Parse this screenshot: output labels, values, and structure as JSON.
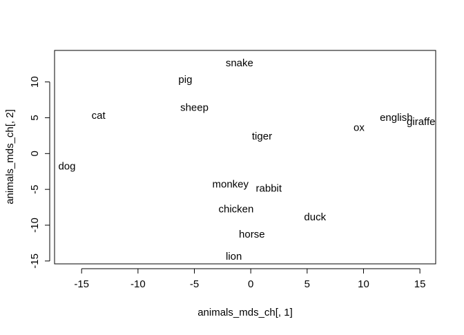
{
  "chart_data": {
    "type": "scatter",
    "title": "",
    "xlabel": "animals_mds_ch[, 1]",
    "ylabel": "animals_mds_ch[, 2]",
    "xlim": [
      -17.4,
      16.4
    ],
    "ylim": [
      -15.4,
      14.4
    ],
    "xticks": [
      -15,
      -10,
      -5,
      0,
      5,
      10,
      15
    ],
    "yticks": [
      -15,
      -10,
      -5,
      0,
      5,
      10
    ],
    "xtick_labels": [
      "-15",
      "-10",
      "-5",
      "0",
      "5",
      "10",
      "15"
    ],
    "ytick_labels": [
      "-15",
      "-10",
      "-5",
      "0",
      "5",
      "10"
    ],
    "grid": false,
    "marker": "text-label",
    "points": [
      {
        "label": "snake",
        "x": -1.0,
        "y": 12.6
      },
      {
        "label": "pig",
        "x": -5.8,
        "y": 10.3
      },
      {
        "label": "sheep",
        "x": -5.0,
        "y": 6.4
      },
      {
        "label": "cat",
        "x": -13.5,
        "y": 5.3
      },
      {
        "label": "tiger",
        "x": 1.0,
        "y": 2.4
      },
      {
        "label": "english",
        "x": 12.9,
        "y": 5.0
      },
      {
        "label": "giraffe",
        "x": 15.1,
        "y": 4.4
      },
      {
        "label": "ox",
        "x": 9.6,
        "y": 3.6
      },
      {
        "label": "dog",
        "x": -16.3,
        "y": -1.8
      },
      {
        "label": "monkey",
        "x": -1.8,
        "y": -4.3
      },
      {
        "label": "rabbit",
        "x": 1.6,
        "y": -4.9
      },
      {
        "label": "chicken",
        "x": -1.3,
        "y": -7.8
      },
      {
        "label": "duck",
        "x": 5.7,
        "y": -8.9
      },
      {
        "label": "horse",
        "x": 0.1,
        "y": -11.3
      },
      {
        "label": "lion",
        "x": -1.5,
        "y": -14.4
      }
    ]
  }
}
